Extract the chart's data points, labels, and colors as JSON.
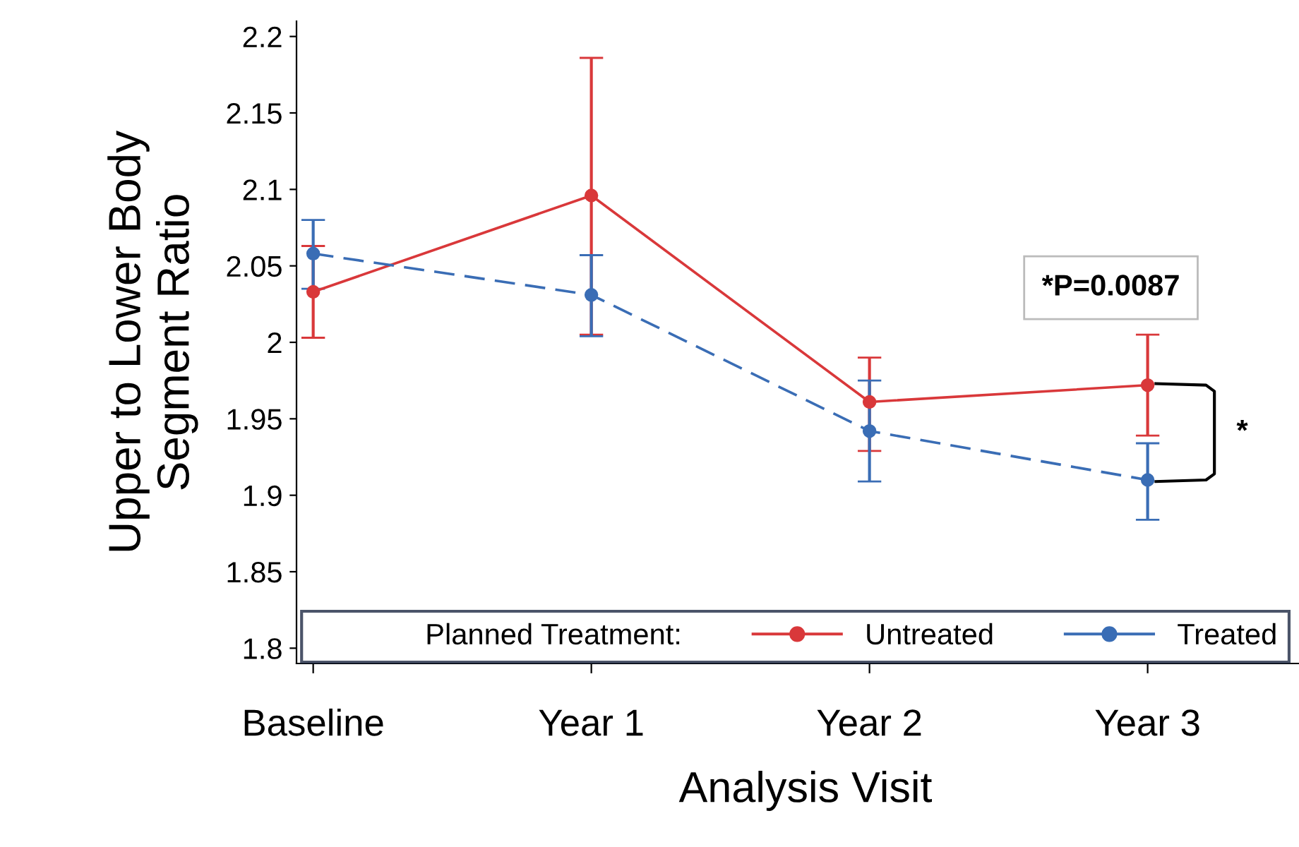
{
  "chart_data": {
    "type": "line",
    "xlabel": "Analysis Visit",
    "ylabel": "Upper to Lower Body\nSegment Ratio",
    "categories": [
      "Baseline",
      "Year 1",
      "Year 2",
      "Year 3"
    ],
    "series": [
      {
        "name": "Untreated",
        "color": "#d9383a",
        "line_style": "solid",
        "values": [
          2.033,
          2.096,
          1.961,
          1.972
        ],
        "errors": [
          [
            2.003,
            2.063
          ],
          [
            2.005,
            2.186
          ],
          [
            1.929,
            1.99
          ],
          [
            1.939,
            2.005
          ]
        ]
      },
      {
        "name": "Treated",
        "color": "#3a6db5",
        "line_style": "dashed",
        "values": [
          2.058,
          2.031,
          1.942,
          1.91
        ],
        "errors": [
          [
            2.035,
            2.08
          ],
          [
            2.004,
            2.057
          ],
          [
            1.909,
            1.975
          ],
          [
            1.884,
            1.934
          ]
        ]
      }
    ],
    "ylim": [
      1.79,
      2.21
    ],
    "yticks": [
      1.8,
      1.85,
      1.9,
      1.95,
      2,
      2.05,
      2.1,
      2.15,
      2.2
    ],
    "marker": "circle",
    "grid": false,
    "legend": "bottom",
    "legend_title": "Planned Treatment:",
    "annotations": [
      "*P=0.0087",
      "*"
    ]
  }
}
